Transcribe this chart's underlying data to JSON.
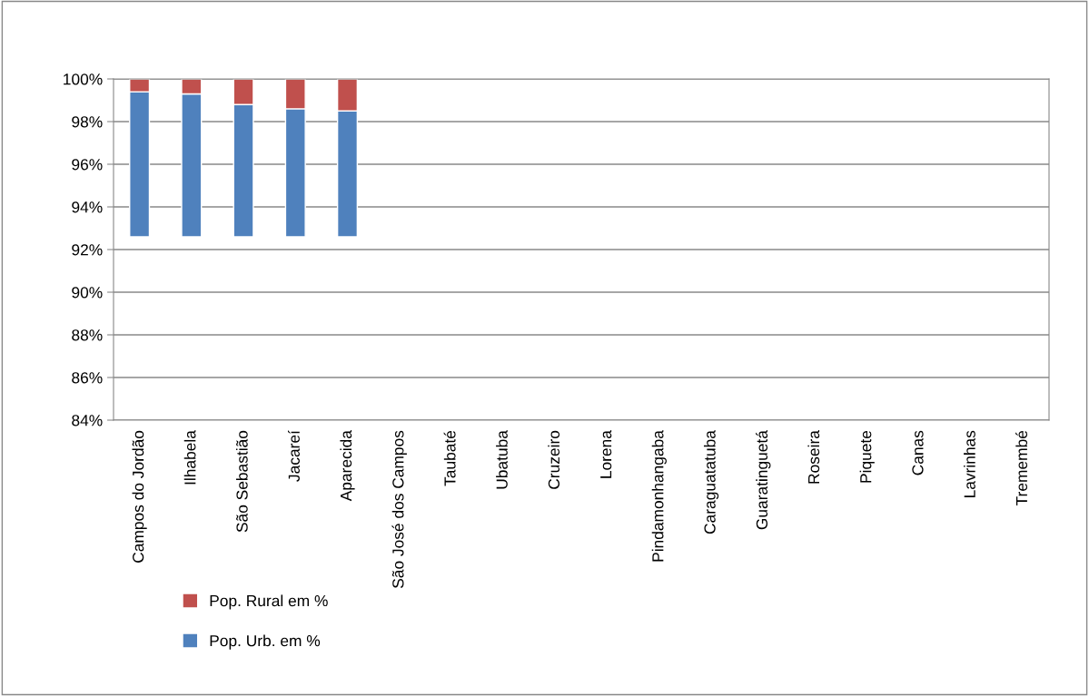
{
  "chart_data": {
    "type": "bar",
    "stacked": true,
    "categories": [
      "Campos do Jordão",
      "Ilhabela",
      "São Sebastião",
      "Jacareí",
      "Aparecida",
      "São José dos Campos",
      "Taubaté",
      "Ubatuba",
      "Cruzeiro",
      "Lorena",
      "Pindamonhangaba",
      "Caraguatatuba",
      "Guaratinguetá",
      "Roseira",
      "Piquete",
      "Canas",
      "Lavrinhas",
      "Tremembé"
    ],
    "series": [
      {
        "name": "Pop. Urb. em %",
        "color": "#4f81bd",
        "base": [
          92.6,
          92.6,
          92.6,
          92.6,
          92.6,
          null,
          null,
          null,
          null,
          null,
          null,
          null,
          null,
          null,
          null,
          null,
          null,
          null
        ],
        "values": [
          6.8,
          6.7,
          6.2,
          6.0,
          5.9,
          null,
          null,
          null,
          null,
          null,
          null,
          null,
          null,
          null,
          null,
          null,
          null,
          null
        ]
      },
      {
        "name": "Pop. Rural em %",
        "color": "#c0504d",
        "base": [
          99.4,
          99.3,
          98.8,
          98.6,
          98.5,
          null,
          null,
          null,
          null,
          null,
          null,
          null,
          null,
          null,
          null,
          null,
          null,
          null
        ],
        "values": [
          0.6,
          0.7,
          1.2,
          1.4,
          1.5,
          null,
          null,
          null,
          null,
          null,
          null,
          null,
          null,
          null,
          null,
          null,
          null,
          null
        ]
      }
    ],
    "ylim": [
      84,
      100
    ],
    "yticks": [
      {
        "value": 84,
        "label": "84%"
      },
      {
        "value": 86,
        "label": "86%"
      },
      {
        "value": 88,
        "label": "88%"
      },
      {
        "value": 90,
        "label": "90%"
      },
      {
        "value": 92,
        "label": "92%"
      },
      {
        "value": 94,
        "label": "94%"
      },
      {
        "value": 96,
        "label": "96%"
      },
      {
        "value": 98,
        "label": "98%"
      },
      {
        "value": 100,
        "label": "100%"
      }
    ],
    "grid": "y",
    "legend": "bottom left"
  }
}
